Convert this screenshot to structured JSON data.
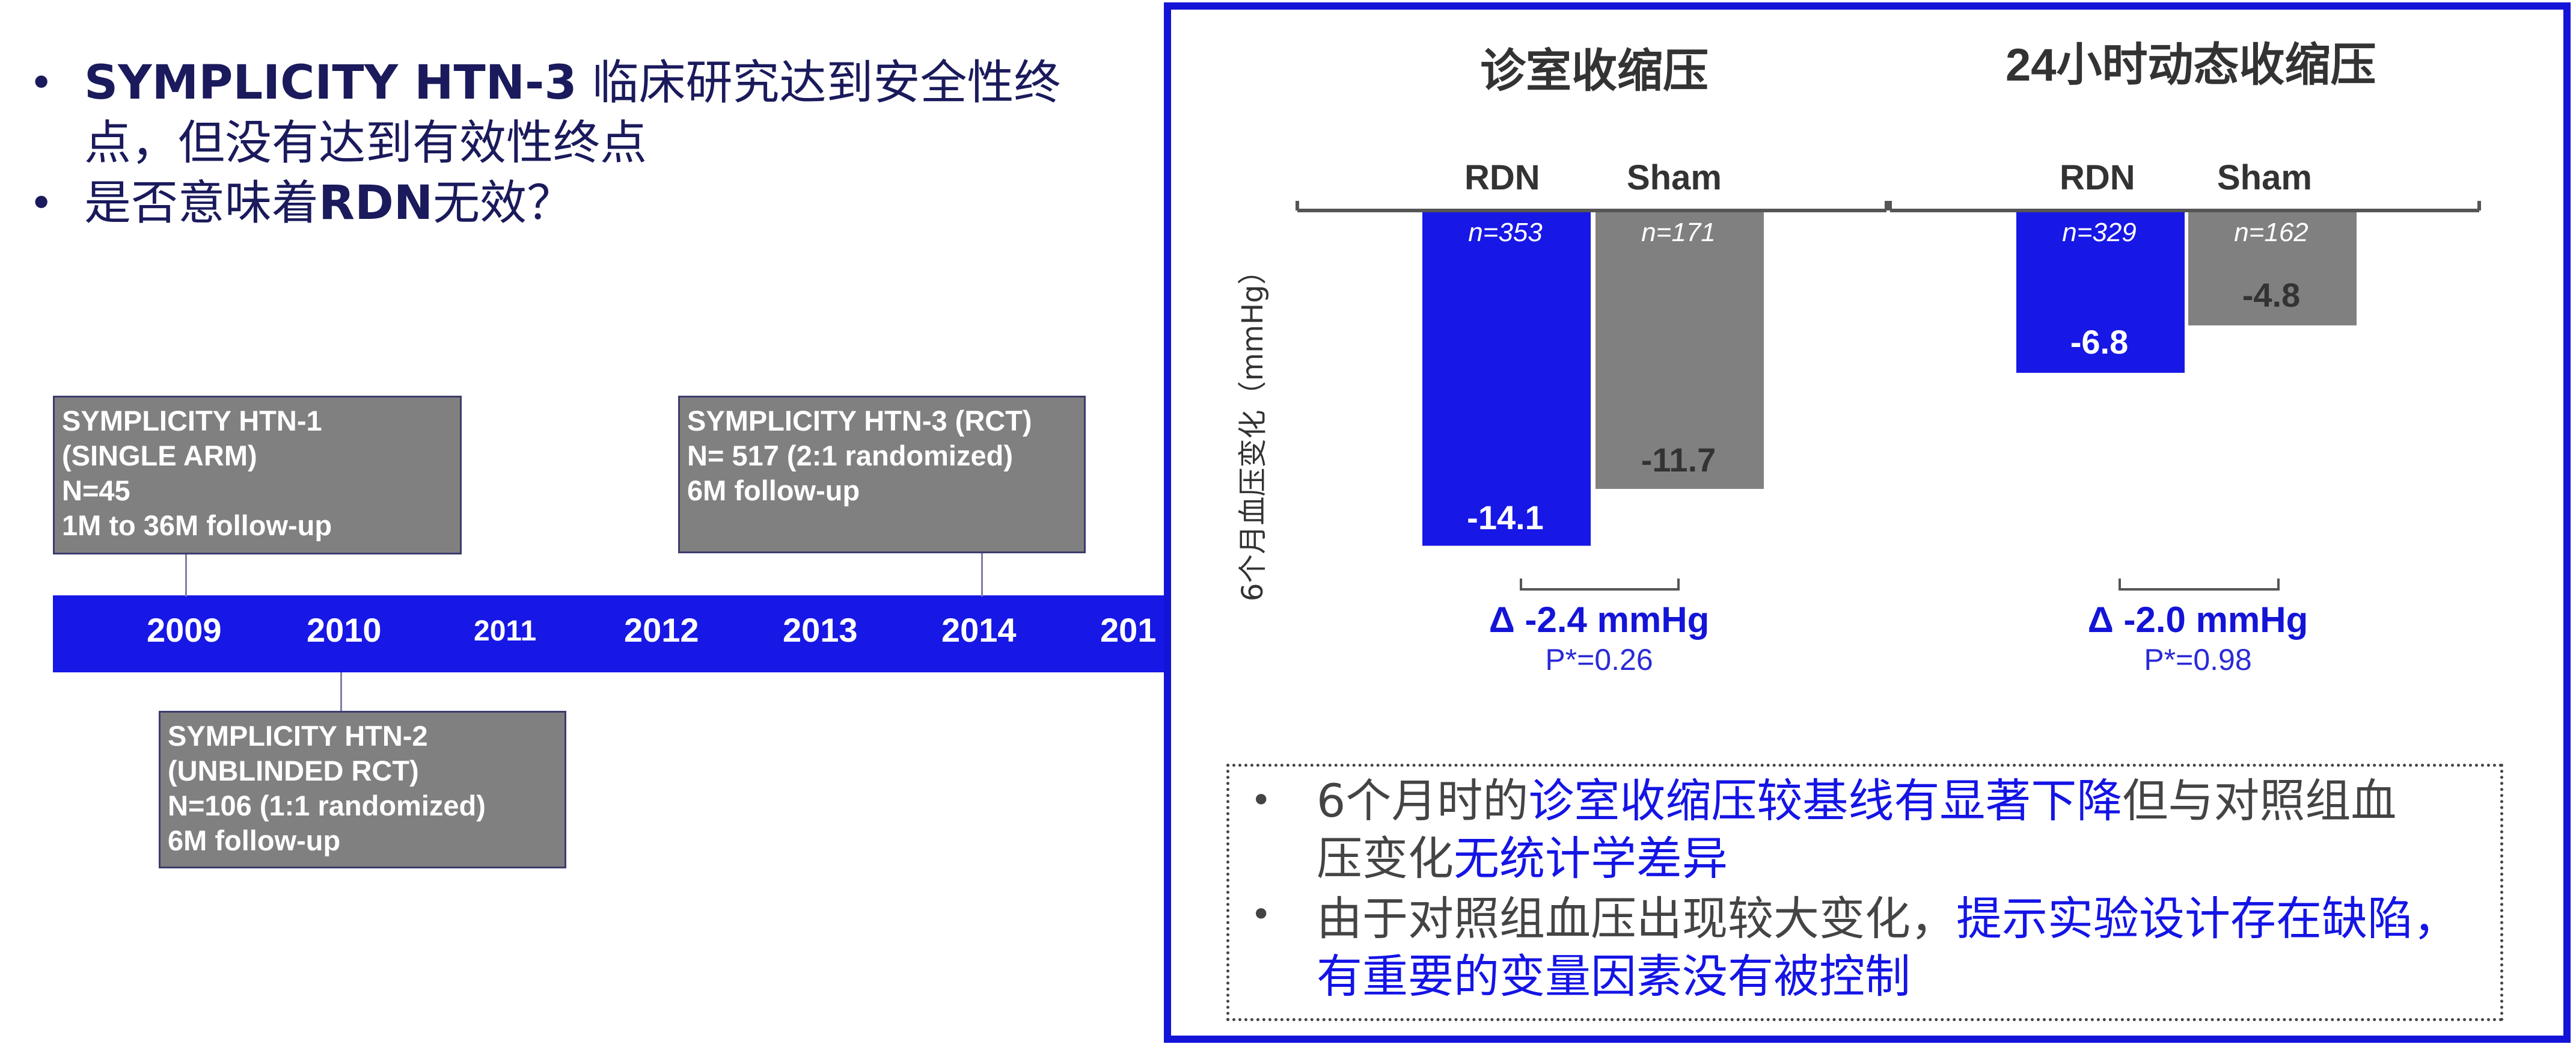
{
  "bullets": [
    {
      "strong": "SYMPLICITY HTN-3",
      "text": " 临床研究达到安全性终",
      "text2": "点，但没有达到有效性终点"
    },
    {
      "pre": "是否意味着",
      "strong": "RDN",
      "post": "无效？"
    }
  ],
  "timeline": {
    "years": [
      "2009",
      "2010",
      "2011",
      "2012",
      "2013",
      "2014",
      "201"
    ],
    "events": [
      {
        "lines": [
          "SYMPLICITY HTN-1",
          "(SINGLE ARM)",
          "N=45",
          "1M to 36M follow-up"
        ]
      },
      {
        "lines": [
          "SYMPLICITY HTN-2",
          "(UNBLINDED RCT)",
          "N=106 (1:1 randomized)",
          "6M follow-up"
        ]
      },
      {
        "lines": [
          "SYMPLICITY HTN-3 (RCT)",
          "N= 517 (2:1 randomized)",
          "6M follow-up"
        ]
      }
    ]
  },
  "chart_data": {
    "type": "bar",
    "ylabel": "6个月血压变化（mmHg）",
    "series_colors": {
      "RDN": "#1717e6",
      "Sham": "#808080"
    },
    "groups": [
      {
        "title": "诊室收缩压",
        "bars": [
          {
            "name": "RDN",
            "n": "n=353",
            "value": -14.1,
            "label": "-14.1"
          },
          {
            "name": "Sham",
            "n": "n=171",
            "value": -11.7,
            "label": "-11.7"
          }
        ],
        "delta": "Δ -2.4 mmHg",
        "p": "P*=0.26"
      },
      {
        "title": "24小时动态收缩压",
        "bars": [
          {
            "name": "RDN",
            "n": "n=329",
            "value": -6.8,
            "label": "-6.8"
          },
          {
            "name": "Sham",
            "n": "n=162",
            "value": -4.8,
            "label": "-4.8"
          }
        ],
        "delta": "Δ -2.0 mmHg",
        "p": "P*=0.98"
      }
    ]
  },
  "notes": [
    {
      "a": "6个月时的",
      "b": "诊室收缩压较基线有显著下降",
      "c": "但与对照组血",
      "d": "压变化",
      "e": "无统计学差异"
    },
    {
      "a": "由于对照组血压出现较大变化，",
      "b": "提示实验设计存在缺陷，",
      "c": "有重要的变量因素没有被控制"
    }
  ]
}
